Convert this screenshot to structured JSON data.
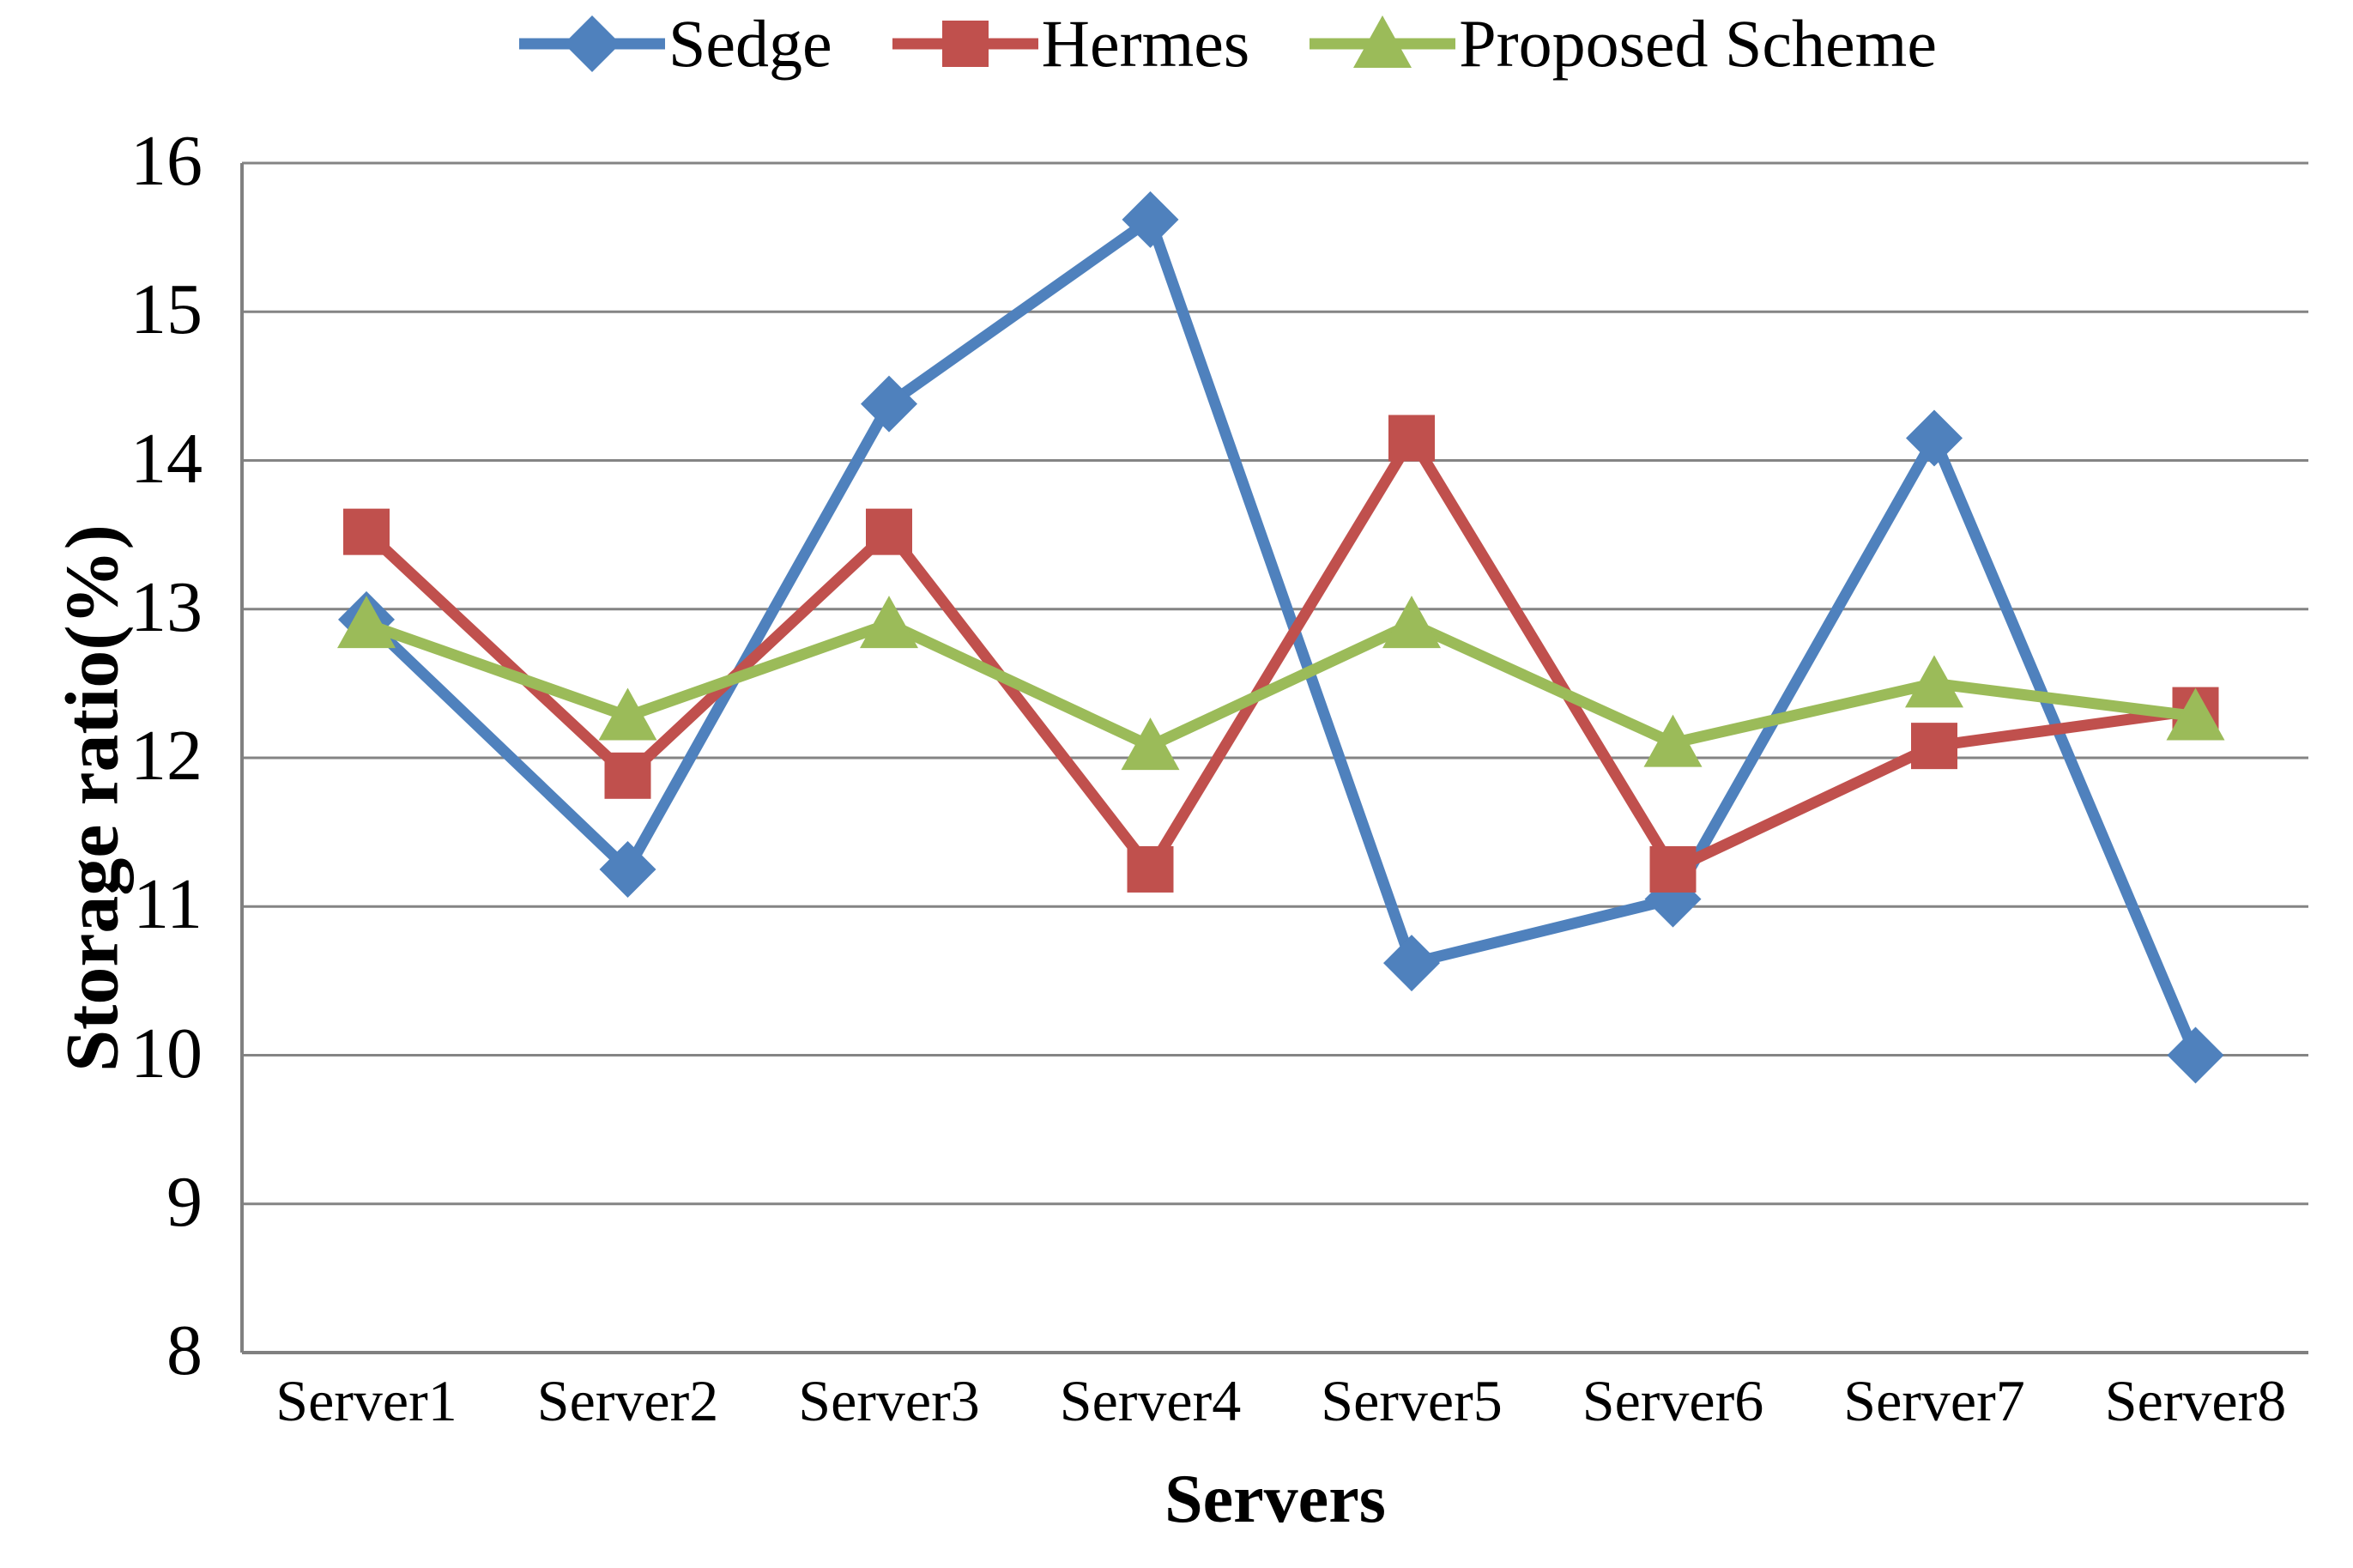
{
  "chart_data": {
    "type": "line",
    "title": "",
    "xlabel": "Servers",
    "ylabel": "Storage ratio(%)",
    "categories": [
      "Server1",
      "Server2",
      "Server3",
      "Server4",
      "Server5",
      "Server6",
      "Server7",
      "Server8"
    ],
    "series": [
      {
        "name": "Sedge",
        "color": "#4F81BD",
        "marker": "diamond",
        "values": [
          12.93,
          11.25,
          14.38,
          15.62,
          10.62,
          11.05,
          14.15,
          10.0
        ]
      },
      {
        "name": "Hermes",
        "color": "#C0504D",
        "marker": "square",
        "values": [
          13.52,
          11.88,
          13.52,
          11.25,
          14.15,
          11.25,
          12.08,
          12.32
        ]
      },
      {
        "name": "Proposed Scheme",
        "color": "#9BBB59",
        "marker": "triangle",
        "values": [
          12.9,
          12.28,
          12.9,
          12.08,
          12.9,
          12.1,
          12.5,
          12.28
        ]
      }
    ],
    "ylim": [
      8,
      16
    ],
    "yticks": [
      8,
      9,
      10,
      11,
      12,
      13,
      14,
      15,
      16
    ],
    "grid": "horizontal",
    "grid_color": "#848484",
    "axis_color": "#808080",
    "legend_position": "top-center"
  }
}
